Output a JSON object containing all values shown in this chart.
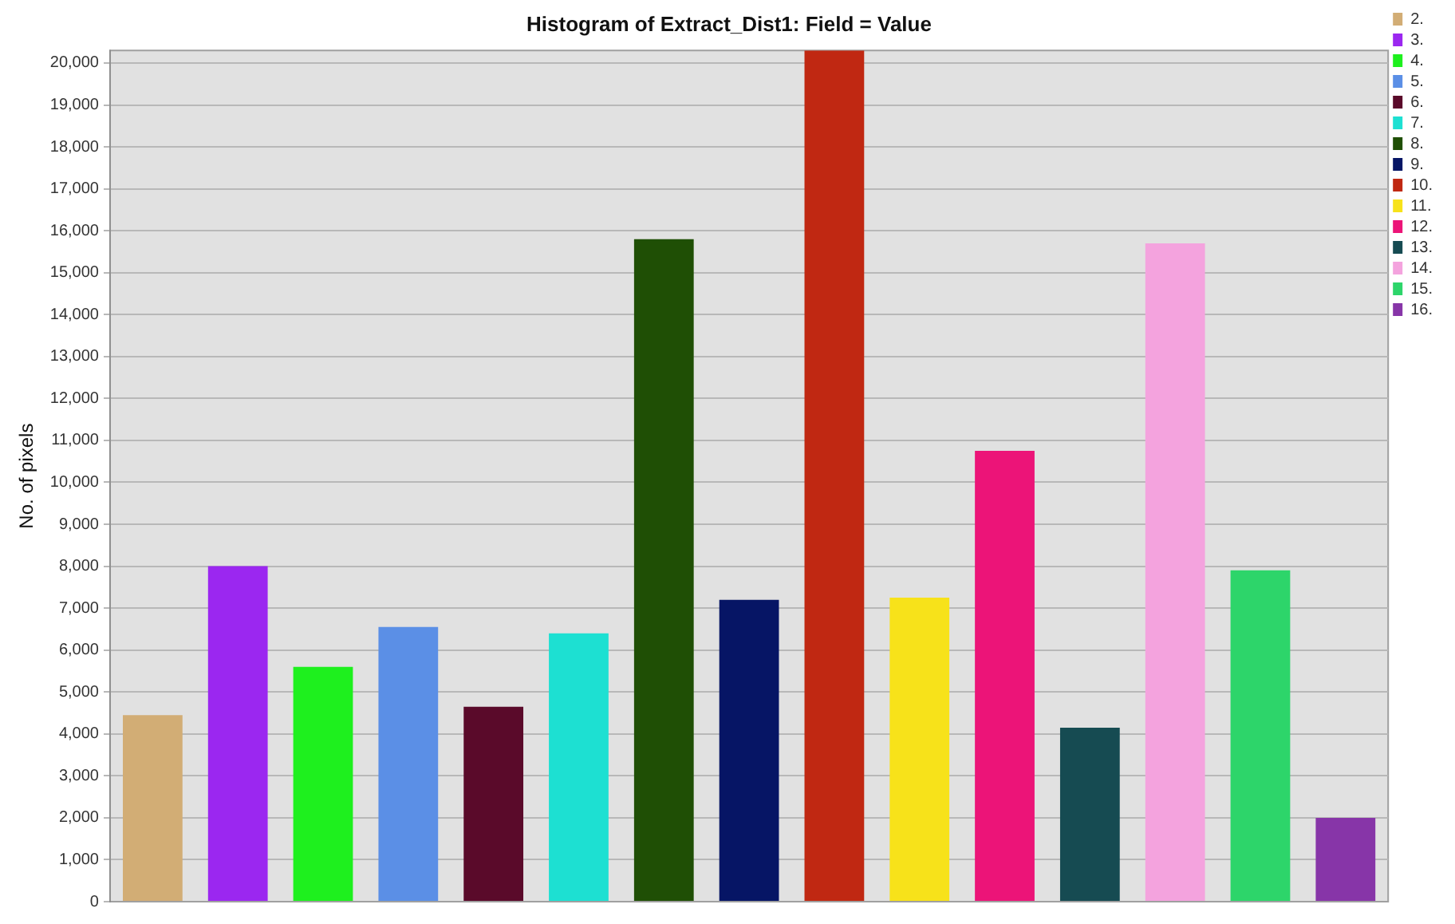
{
  "chart_data": {
    "type": "bar",
    "title": "Histogram of Extract_Dist1: Field = Value",
    "ylabel": "No. of pixels",
    "categories": [
      null,
      null,
      null,
      null,
      null,
      null,
      null,
      null,
      null,
      null,
      null,
      null,
      null,
      null,
      null
    ],
    "series": [
      {
        "name": "2.",
        "color": "#d2ad75",
        "values": [
          4450,
          null,
          null,
          null,
          null,
          null,
          null,
          null,
          null,
          null,
          null,
          null,
          null,
          null,
          null
        ]
      },
      {
        "name": "3.",
        "color": "#9b27f0",
        "values": [
          null,
          8000,
          null,
          null,
          null,
          null,
          null,
          null,
          null,
          null,
          null,
          null,
          null,
          null,
          null
        ]
      },
      {
        "name": "4.",
        "color": "#1ef01e",
        "values": [
          null,
          null,
          5600,
          null,
          null,
          null,
          null,
          null,
          null,
          null,
          null,
          null,
          null,
          null,
          null
        ]
      },
      {
        "name": "5.",
        "color": "#5b8fe6",
        "values": [
          null,
          null,
          null,
          6550,
          null,
          null,
          null,
          null,
          null,
          null,
          null,
          null,
          null,
          null,
          null
        ]
      },
      {
        "name": "6.",
        "color": "#5a0a2a",
        "values": [
          null,
          null,
          null,
          null,
          4650,
          null,
          null,
          null,
          null,
          null,
          null,
          null,
          null,
          null,
          null
        ]
      },
      {
        "name": "7.",
        "color": "#1de0d2",
        "values": [
          null,
          null,
          null,
          null,
          null,
          6400,
          null,
          null,
          null,
          null,
          null,
          null,
          null,
          null,
          null
        ]
      },
      {
        "name": "8.",
        "color": "#1f4f05",
        "values": [
          null,
          null,
          null,
          null,
          null,
          null,
          15800,
          null,
          null,
          null,
          null,
          null,
          null,
          null,
          null
        ]
      },
      {
        "name": "9.",
        "color": "#061565",
        "values": [
          null,
          null,
          null,
          null,
          null,
          null,
          null,
          7200,
          null,
          null,
          null,
          null,
          null,
          null,
          null
        ]
      },
      {
        "name": "10.",
        "color": "#c02812",
        "values": [
          null,
          null,
          null,
          null,
          null,
          null,
          null,
          null,
          20300,
          null,
          null,
          null,
          null,
          null,
          null
        ]
      },
      {
        "name": "11.",
        "color": "#f7e21a",
        "values": [
          null,
          null,
          null,
          null,
          null,
          null,
          null,
          null,
          null,
          7250,
          null,
          null,
          null,
          null,
          null
        ]
      },
      {
        "name": "12.",
        "color": "#ec1478",
        "values": [
          null,
          null,
          null,
          null,
          null,
          null,
          null,
          null,
          null,
          null,
          10750,
          null,
          null,
          null,
          null
        ]
      },
      {
        "name": "13.",
        "color": "#164b52",
        "values": [
          null,
          null,
          null,
          null,
          null,
          null,
          null,
          null,
          null,
          null,
          null,
          4150,
          null,
          null,
          null
        ]
      },
      {
        "name": "14.",
        "color": "#f4a3de",
        "values": [
          null,
          null,
          null,
          null,
          null,
          null,
          null,
          null,
          null,
          null,
          null,
          null,
          15700,
          null,
          null
        ]
      },
      {
        "name": "15.",
        "color": "#2dd56a",
        "values": [
          null,
          null,
          null,
          null,
          null,
          null,
          null,
          null,
          null,
          null,
          null,
          null,
          null,
          7900,
          null
        ]
      },
      {
        "name": "16.",
        "color": "#8735a8",
        "values": [
          null,
          null,
          null,
          null,
          null,
          null,
          null,
          null,
          null,
          null,
          null,
          null,
          null,
          null,
          2000
        ]
      }
    ],
    "ylim": [
      0,
      20300
    ],
    "yticks": [
      {
        "value": 0,
        "label": "0"
      },
      {
        "value": 1000,
        "label": "1,000"
      },
      {
        "value": 2000,
        "label": "2,000"
      },
      {
        "value": 3000,
        "label": "3,000"
      },
      {
        "value": 4000,
        "label": "4,000"
      },
      {
        "value": 5000,
        "label": "5,000"
      },
      {
        "value": 6000,
        "label": "6,000"
      },
      {
        "value": 7000,
        "label": "7,000"
      },
      {
        "value": 8000,
        "label": "8,000"
      },
      {
        "value": 9000,
        "label": "9,000"
      },
      {
        "value": 10000,
        "label": "10,000"
      },
      {
        "value": 11000,
        "label": "11,000"
      },
      {
        "value": 12000,
        "label": "12,000"
      },
      {
        "value": 13000,
        "label": "13,000"
      },
      {
        "value": 14000,
        "label": "14,000"
      },
      {
        "value": 15000,
        "label": "15,000"
      },
      {
        "value": 16000,
        "label": "16,000"
      },
      {
        "value": 17000,
        "label": "17,000"
      },
      {
        "value": 18000,
        "label": "18,000"
      },
      {
        "value": 19000,
        "label": "19,000"
      },
      {
        "value": 20000,
        "label": "20,000"
      }
    ],
    "grid": "y",
    "legend": "right",
    "tick_labels": "y"
  }
}
